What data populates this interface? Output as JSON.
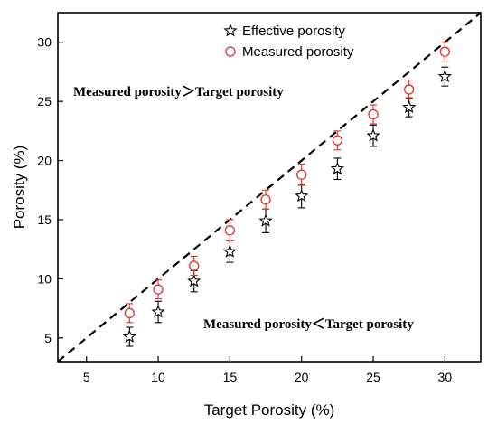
{
  "chart_data": {
    "type": "scatter",
    "xlabel": "Target Porosity (%)",
    "ylabel": "Porosity (%)",
    "xlim": [
      3,
      32.5
    ],
    "ylim": [
      3,
      32.5
    ],
    "x_ticks": [
      5,
      10,
      15,
      20,
      25,
      30
    ],
    "y_ticks": [
      5,
      10,
      15,
      20,
      25,
      30
    ],
    "grid": false,
    "legend_position": "top-center",
    "reference_line": {
      "style": "dashed",
      "from": [
        3,
        3
      ],
      "to": [
        32.5,
        32.5
      ],
      "color": "#000000"
    },
    "series": [
      {
        "name": "Effective porosity",
        "marker": "star",
        "color": "#000000",
        "x": [
          8,
          10,
          12.5,
          15,
          17.5,
          20,
          22.5,
          25,
          27.5,
          30
        ],
        "y": [
          5.1,
          7.2,
          9.8,
          12.3,
          14.9,
          17.0,
          19.3,
          22.1,
          24.5,
          27.1
        ],
        "error": [
          0.8,
          0.9,
          0.9,
          0.9,
          1.0,
          1.0,
          0.9,
          0.9,
          0.8,
          0.8
        ]
      },
      {
        "name": "Measured porosity",
        "marker": "circle",
        "color": "#e0302a",
        "x": [
          8,
          10,
          12.5,
          15,
          17.5,
          20,
          22.5,
          25,
          27.5,
          30
        ],
        "y": [
          7.1,
          9.1,
          11.1,
          14.1,
          16.7,
          18.8,
          21.7,
          23.9,
          26.0,
          29.2
        ],
        "error": [
          0.8,
          0.8,
          0.8,
          0.9,
          0.8,
          0.9,
          0.8,
          0.8,
          0.8,
          0.8
        ]
      }
    ],
    "annotations": [
      "Measured porosity＞Target porosity",
      "Measured porosity＜Target porosity"
    ]
  }
}
